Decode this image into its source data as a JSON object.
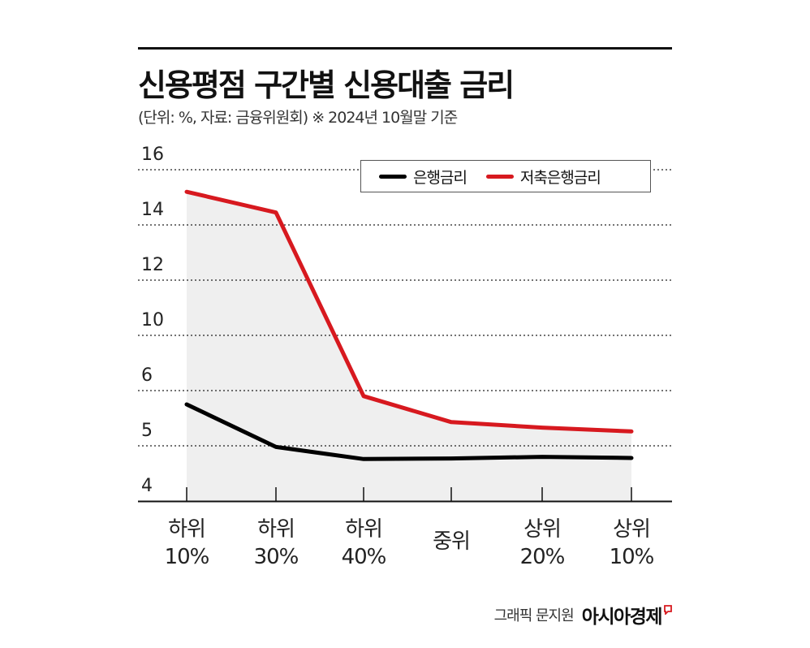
{
  "title": "신용평점 구간별 신용대출 금리",
  "subtitle": "(단위: %, 자료: 금융위원회)  ※ 2024년 10월말 기준",
  "footer": {
    "credit": "그래픽 문지원",
    "brand": "아시아경제"
  },
  "colors": {
    "bank": "#000000",
    "savings_bank": "#d7191f",
    "fill": "#efefef",
    "grid": "#222222"
  },
  "chart_data": {
    "type": "line",
    "categories": [
      [
        "하위",
        "10%"
      ],
      [
        "하위",
        "30%"
      ],
      [
        "하위",
        "40%"
      ],
      [
        "중위"
      ],
      [
        "상위",
        "20%"
      ],
      [
        "상위",
        "10%"
      ]
    ],
    "y_ticks": [
      4,
      5,
      6,
      10,
      12,
      14,
      16
    ],
    "ylim": [
      4,
      16
    ],
    "scale_note": "broken y-axis; tick labels 4, 5, 6, 10, 12, 14, 16 are evenly spaced",
    "grid": "dotted horizontal",
    "legend_position": "top-right",
    "series": [
      {
        "name": "은행금리",
        "color": "#000000",
        "values": [
          5.75,
          4.98,
          4.76,
          4.77,
          4.8,
          4.78
        ]
      },
      {
        "name": "저축은행금리",
        "color": "#d7191f",
        "values": [
          15.2,
          14.45,
          5.9,
          5.43,
          5.33,
          5.26
        ]
      }
    ]
  }
}
